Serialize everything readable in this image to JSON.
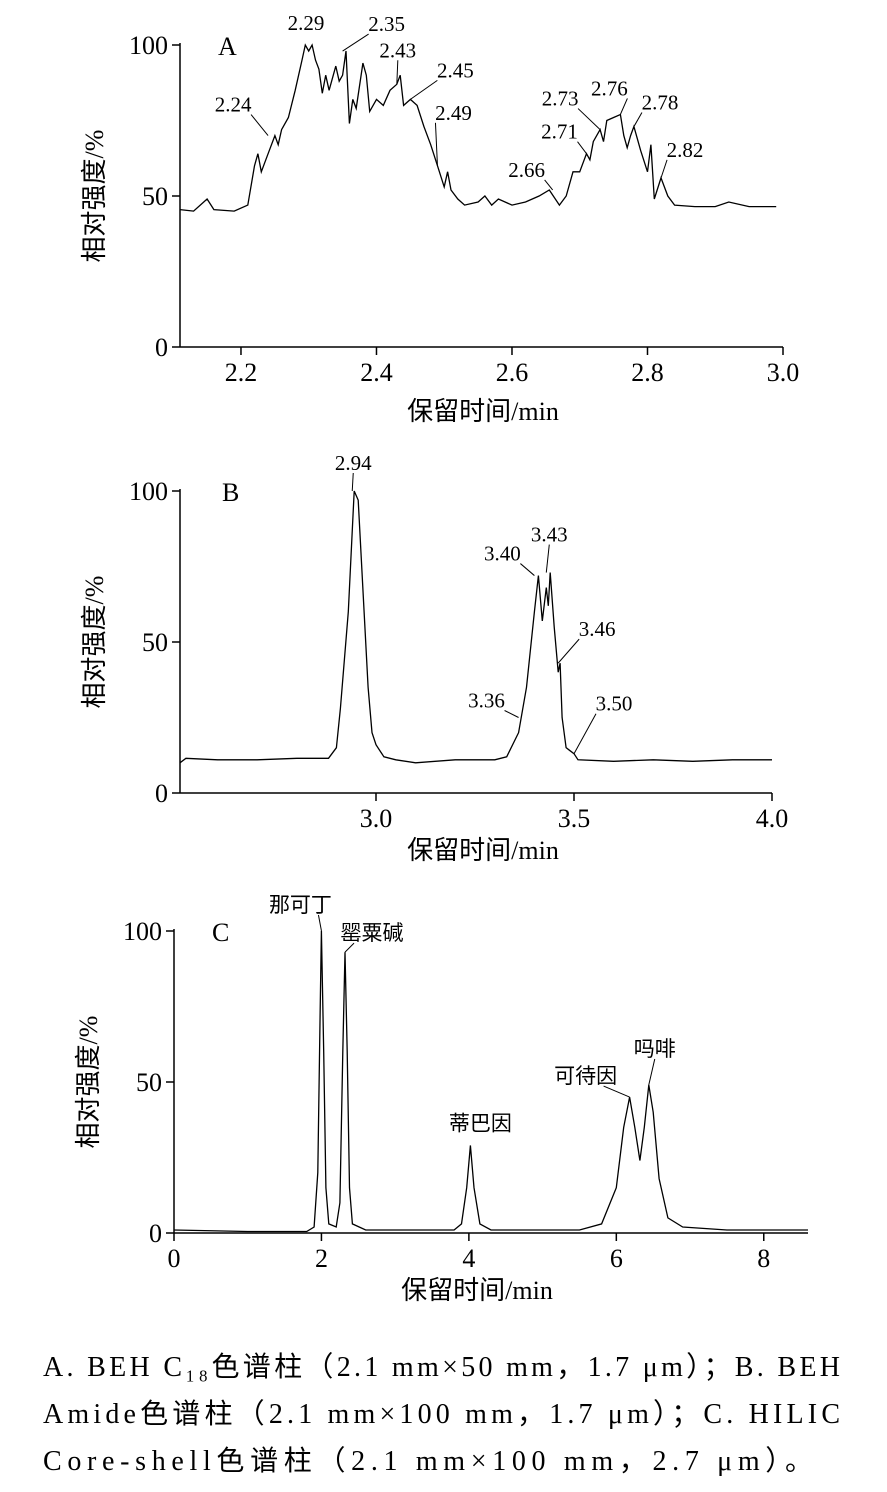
{
  "chart_data": [
    {
      "type": "line",
      "panel": "A",
      "ylabel": "相对强度/%",
      "xlabel": "保留时间/min",
      "color": "#000000",
      "xlim": [
        2.11,
        3.0
      ],
      "ylim": [
        0,
        100
      ],
      "xticks": [
        2.2,
        2.4,
        2.6,
        2.8,
        {
          "value": 3,
          "label": "3.0"
        }
      ],
      "yticks": [
        0,
        50,
        100
      ],
      "x": [
        2.11,
        2.13,
        2.15,
        2.16,
        2.19,
        2.21,
        2.22,
        2.225,
        2.23,
        2.24,
        2.25,
        2.255,
        2.26,
        2.27,
        2.28,
        2.29,
        2.295,
        2.3,
        2.305,
        2.31,
        2.315,
        2.32,
        2.325,
        2.33,
        2.34,
        2.345,
        2.35,
        2.355,
        2.36,
        2.365,
        2.37,
        2.38,
        2.385,
        2.39,
        2.4,
        2.41,
        2.42,
        2.43,
        2.435,
        2.44,
        2.45,
        2.46,
        2.47,
        2.48,
        2.49,
        2.5,
        2.505,
        2.51,
        2.52,
        2.53,
        2.55,
        2.56,
        2.57,
        2.58,
        2.6,
        2.62,
        2.64,
        2.655,
        2.67,
        2.68,
        2.69,
        2.7,
        2.71,
        2.715,
        2.72,
        2.73,
        2.735,
        2.74,
        2.75,
        2.76,
        2.765,
        2.77,
        2.775,
        2.78,
        2.79,
        2.8,
        2.805,
        2.81,
        2.82,
        2.83,
        2.84,
        2.87,
        2.9,
        2.92,
        2.95,
        2.99
      ],
      "values": [
        45.5,
        45,
        49,
        45.5,
        45,
        47,
        60,
        64,
        58,
        64,
        70,
        67,
        72,
        76,
        85,
        95,
        100,
        98,
        100,
        95,
        92,
        84,
        90,
        85,
        93,
        88,
        90,
        98,
        74,
        82,
        79,
        94,
        90,
        78,
        82,
        80,
        85,
        87,
        90,
        80,
        82,
        80,
        73,
        67,
        60,
        53,
        58,
        52,
        49,
        47,
        48,
        50,
        47,
        49,
        47,
        48,
        50,
        52,
        47,
        50,
        58,
        58,
        64,
        62,
        68,
        72,
        68,
        75,
        76,
        77,
        70,
        66,
        70,
        73,
        65,
        58,
        67,
        49,
        56,
        50,
        47,
        46.5,
        46.5,
        48,
        46.5,
        46.5
      ],
      "annotations": [
        {
          "label": "2.24",
          "x": 2.24,
          "y": 70
        },
        {
          "label": "2.29",
          "x": 2.29,
          "y": 100
        },
        {
          "label": "2.35",
          "x": 2.35,
          "y": 98
        },
        {
          "label": "2.43",
          "x": 2.43,
          "y": 87
        },
        {
          "label": "2.45",
          "x": 2.45,
          "y": 82
        },
        {
          "label": "2.49",
          "x": 2.49,
          "y": 60
        },
        {
          "label": "2.66",
          "x": 2.66,
          "y": 52
        },
        {
          "label": "2.71",
          "x": 2.71,
          "y": 64
        },
        {
          "label": "2.73",
          "x": 2.73,
          "y": 72
        },
        {
          "label": "2.76",
          "x": 2.76,
          "y": 77
        },
        {
          "label": "2.78",
          "x": 2.78,
          "y": 73
        },
        {
          "label": "2.82",
          "x": 2.82,
          "y": 56
        }
      ]
    },
    {
      "type": "line",
      "panel": "B",
      "ylabel": "相对强度/%",
      "xlabel": "保留时间/min",
      "color": "#000000",
      "xlim": [
        2.5,
        4.0
      ],
      "ylim": [
        0,
        100
      ],
      "xticks": [
        {
          "value": 3,
          "label": "3.0"
        },
        3.5,
        {
          "value": 4,
          "label": "4.0"
        }
      ],
      "yticks": [
        0,
        50,
        100
      ],
      "x": [
        2.505,
        2.52,
        2.6,
        2.7,
        2.8,
        2.88,
        2.9,
        2.91,
        2.93,
        2.945,
        2.955,
        2.97,
        2.98,
        2.99,
        3.0,
        3.02,
        3.05,
        3.1,
        3.2,
        3.3,
        3.33,
        3.36,
        3.38,
        3.4,
        3.41,
        3.42,
        3.43,
        3.435,
        3.44,
        3.45,
        3.46,
        3.465,
        3.47,
        3.48,
        3.49,
        3.5,
        3.51,
        3.6,
        3.7,
        3.8,
        3.9,
        4.0
      ],
      "values": [
        10,
        11.5,
        11,
        11,
        11.5,
        11.5,
        15,
        28,
        60,
        100,
        97,
        60,
        35,
        20,
        16,
        12,
        11,
        10,
        11,
        11,
        12,
        20,
        35,
        60,
        72,
        57,
        68,
        62,
        73,
        55,
        40,
        43,
        25,
        15,
        14,
        13,
        11,
        10.5,
        11,
        10.5,
        11,
        11
      ],
      "annotations": [
        {
          "label": "2.94",
          "x": 2.94,
          "y": 100
        },
        {
          "label": "3.36",
          "x": 3.36,
          "y": 25
        },
        {
          "label": "3.40",
          "x": 3.4,
          "y": 72
        },
        {
          "label": "3.43",
          "x": 3.43,
          "y": 73
        },
        {
          "label": "3.46",
          "x": 3.46,
          "y": 43
        },
        {
          "label": "3.50",
          "x": 3.5,
          "y": 13
        }
      ]
    },
    {
      "type": "line",
      "panel": "C",
      "ylabel": "相对强度/%",
      "xlabel": "保留时间/min",
      "color": "#000000",
      "xlim": [
        0,
        8.6
      ],
      "ylim": [
        0,
        100
      ],
      "xticks": [
        0,
        2,
        4,
        6,
        8
      ],
      "yticks": [
        0,
        50,
        100
      ],
      "x": [
        0,
        1,
        1.8,
        1.9,
        1.95,
        1.98,
        2,
        2.03,
        2.06,
        2.1,
        2.2,
        2.25,
        2.29,
        2.32,
        2.35,
        2.38,
        2.42,
        2.6,
        3.8,
        3.9,
        3.97,
        4.02,
        4.07,
        4.15,
        4.3,
        5.5,
        5.8,
        6,
        6.1,
        6.18,
        6.25,
        6.32,
        6.38,
        6.44,
        6.5,
        6.58,
        6.7,
        6.9,
        7.5,
        8.6
      ],
      "values": [
        1,
        0.5,
        0.5,
        2,
        20,
        70,
        100,
        60,
        15,
        3,
        2,
        10,
        60,
        93,
        60,
        15,
        3,
        1,
        1,
        3,
        15,
        29,
        15,
        3,
        1,
        1,
        3,
        15,
        35,
        45,
        35,
        24,
        35,
        49,
        40,
        18,
        5,
        2,
        1,
        1
      ],
      "annotations": [
        {
          "label": "那可丁",
          "x": 2,
          "y": 100
        },
        {
          "label": "罂粟碱",
          "x": 2.32,
          "y": 93
        },
        {
          "label": "蒂巴因",
          "x": 4.02,
          "y": 29
        },
        {
          "label": "可待因",
          "x": 6.18,
          "y": 45
        },
        {
          "label": "吗啡",
          "x": 6.44,
          "y": 49
        }
      ]
    }
  ],
  "caption": [
    "A. BEH C₁₈色谱柱（2.1 mm×50 mm，1.7 μm）；B. BEH",
    "Amide色谱柱（2.1 mm×100 mm，1.7 μm）；C. HILIC",
    "Core-shell色谱柱（2.1 mm×100 mm，2.7 μm）。"
  ]
}
